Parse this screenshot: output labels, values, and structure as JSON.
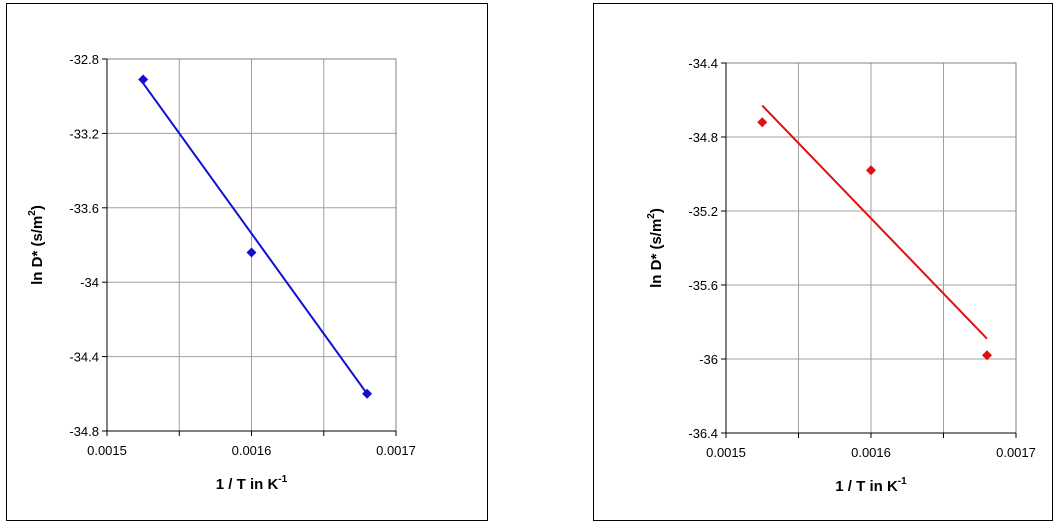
{
  "chart_data": [
    {
      "type": "scatter",
      "xlabel": "1 / T in K",
      "xlabel_sup": "-1",
      "ylabel": "ln D* (s/m",
      "ylabel_sup": "2",
      "ylabel_end": ")",
      "xlim": [
        0.0015,
        0.0017
      ],
      "ylim": [
        -34.8,
        -32.8
      ],
      "x_ticks": [
        0.0015,
        0.0016,
        0.0017
      ],
      "x_tick_labels": [
        "0.0015",
        "0.0016",
        "0.0017"
      ],
      "y_ticks": [
        -32.8,
        -33.2,
        -33.6,
        -34,
        -34.4,
        -34.8
      ],
      "y_tick_labels": [
        "-32.8",
        "-33.2",
        "-33.6",
        "-34",
        "-34.4",
        "-34.8"
      ],
      "x_grid_step": 5e-05,
      "grid": true,
      "marker": "diamond",
      "color": "#1010d0",
      "points": [
        {
          "x": 0.001525,
          "y": -32.91
        },
        {
          "x": 0.0016,
          "y": -33.84
        },
        {
          "x": 0.00168,
          "y": -34.6
        }
      ],
      "trendline": {
        "x": [
          0.001525,
          0.00168
        ],
        "y": [
          -32.93,
          -34.6
        ]
      }
    },
    {
      "type": "scatter",
      "xlabel": "1 / T in K",
      "xlabel_sup": "-1",
      "ylabel": "ln D* (s/m",
      "ylabel_sup": "2",
      "ylabel_end": ")",
      "xlim": [
        0.0015,
        0.0017
      ],
      "ylim": [
        -36.4,
        -34.4
      ],
      "x_ticks": [
        0.0015,
        0.0016,
        0.0017
      ],
      "x_tick_labels": [
        "0.0015",
        "0.0016",
        "0.0017"
      ],
      "y_ticks": [
        -34.4,
        -34.8,
        -35.2,
        -35.6,
        -36,
        -36.4
      ],
      "y_tick_labels": [
        "-34.4",
        "-34.8",
        "-35.2",
        "-35.6",
        "-36",
        "-36.4"
      ],
      "x_grid_step": 5e-05,
      "grid": true,
      "marker": "diamond",
      "color": "#e01010",
      "points": [
        {
          "x": 0.001525,
          "y": -34.72
        },
        {
          "x": 0.0016,
          "y": -34.98
        },
        {
          "x": 0.00168,
          "y": -35.98
        }
      ],
      "trendline": {
        "x": [
          0.001525,
          0.00168
        ],
        "y": [
          -34.63,
          -35.89
        ]
      }
    }
  ]
}
